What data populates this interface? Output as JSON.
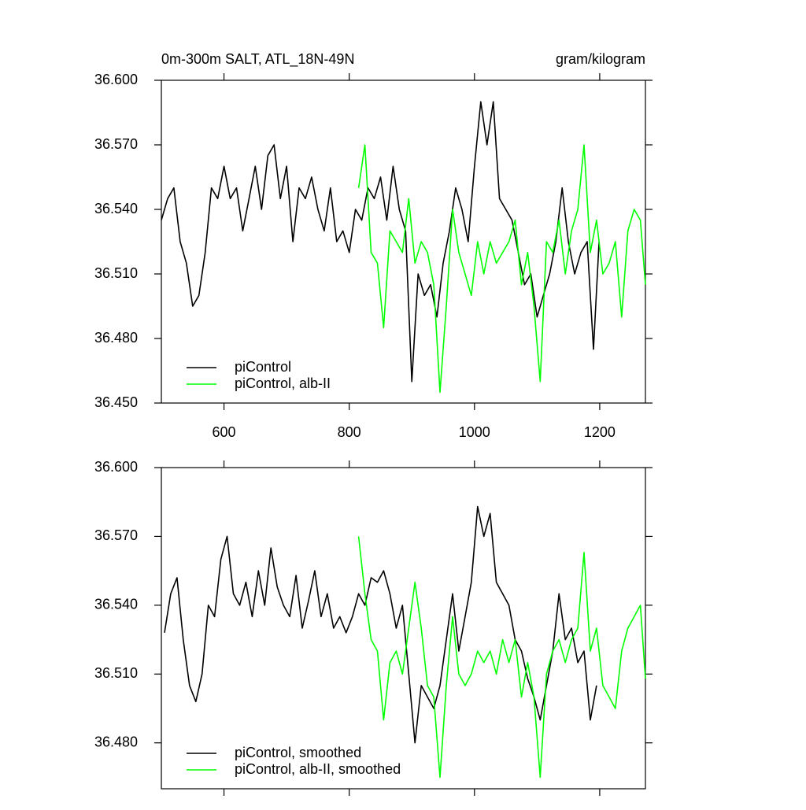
{
  "chart_data": [
    {
      "type": "line",
      "title": "0m-300m SALT, ATL_18N-49N",
      "units": "gram/kilogram",
      "xlim": [
        500,
        1273
      ],
      "ylim": [
        36.45,
        36.6
      ],
      "xticks": [
        600,
        800,
        1000,
        1200
      ],
      "yticks": [
        {
          "value": 36.45,
          "label": "36.450"
        },
        {
          "value": 36.48,
          "label": "36.480"
        },
        {
          "value": 36.51,
          "label": "36.510"
        },
        {
          "value": 36.54,
          "label": "36.540"
        },
        {
          "value": 36.57,
          "label": "36.570"
        },
        {
          "value": 36.6,
          "label": "36.600"
        }
      ],
      "legend": "lower left",
      "series": [
        {
          "name": "piControl",
          "color": "#000000",
          "x": [
            500,
            510,
            520,
            530,
            540,
            550,
            560,
            570,
            580,
            590,
            600,
            610,
            620,
            630,
            640,
            650,
            660,
            670,
            680,
            690,
            700,
            710,
            720,
            730,
            740,
            750,
            760,
            770,
            780,
            790,
            800,
            810,
            820,
            830,
            840,
            850,
            860,
            870,
            880,
            890,
            900,
            910,
            920,
            930,
            940,
            950,
            960,
            970,
            980,
            990,
            1000,
            1010,
            1020,
            1030,
            1040,
            1050,
            1060,
            1070,
            1080,
            1090,
            1100,
            1110,
            1120,
            1130,
            1140,
            1150,
            1160,
            1170,
            1180,
            1190,
            1199
          ],
          "values": [
            36.535,
            36.545,
            36.55,
            36.525,
            36.515,
            36.495,
            36.5,
            36.52,
            36.55,
            36.545,
            36.56,
            36.545,
            36.55,
            36.53,
            36.545,
            36.56,
            36.54,
            36.565,
            36.57,
            36.545,
            36.56,
            36.525,
            36.55,
            36.545,
            36.555,
            36.54,
            36.53,
            36.55,
            36.525,
            36.53,
            36.52,
            36.54,
            36.535,
            36.55,
            36.545,
            36.555,
            36.535,
            36.56,
            36.54,
            36.53,
            36.46,
            36.51,
            36.5,
            36.505,
            36.49,
            36.515,
            36.53,
            36.55,
            36.54,
            36.525,
            36.56,
            36.59,
            36.57,
            36.59,
            36.545,
            36.54,
            36.535,
            36.52,
            36.505,
            36.51,
            36.49,
            36.5,
            36.51,
            36.525,
            36.55,
            36.525,
            36.51,
            36.52,
            36.525,
            36.475,
            36.525
          ]
        },
        {
          "name": "piControl, alb-II",
          "color": "#00ff00",
          "x": [
            815,
            825,
            835,
            845,
            855,
            865,
            875,
            885,
            895,
            905,
            915,
            925,
            935,
            945,
            955,
            965,
            975,
            985,
            995,
            1005,
            1015,
            1025,
            1035,
            1045,
            1055,
            1065,
            1075,
            1085,
            1095,
            1105,
            1115,
            1125,
            1135,
            1145,
            1155,
            1165,
            1175,
            1185,
            1195,
            1205,
            1215,
            1225,
            1235,
            1245,
            1255,
            1265,
            1273
          ],
          "values": [
            36.55,
            36.57,
            36.52,
            36.515,
            36.485,
            36.53,
            36.525,
            36.52,
            36.545,
            36.515,
            36.525,
            36.52,
            36.505,
            36.455,
            36.495,
            36.54,
            36.52,
            36.51,
            36.5,
            36.525,
            36.51,
            36.525,
            36.515,
            36.52,
            36.525,
            36.535,
            36.505,
            36.52,
            36.495,
            36.46,
            36.525,
            36.52,
            36.535,
            36.51,
            36.53,
            36.54,
            36.57,
            36.52,
            36.535,
            36.51,
            36.515,
            36.525,
            36.49,
            36.53,
            36.54,
            36.535,
            36.505
          ]
        }
      ]
    },
    {
      "type": "line",
      "xlim": [
        500,
        1273
      ],
      "ylim": [
        36.46,
        36.6
      ],
      "yticks": [
        {
          "value": 36.48,
          "label": "36.480"
        },
        {
          "value": 36.51,
          "label": "36.510"
        },
        {
          "value": 36.54,
          "label": "36.540"
        },
        {
          "value": 36.57,
          "label": "36.570"
        },
        {
          "value": 36.6,
          "label": "36.600"
        }
      ],
      "legend": "lower left",
      "series": [
        {
          "name": "piControl, smoothed",
          "color": "#000000",
          "x": [
            505,
            515,
            525,
            535,
            545,
            555,
            565,
            575,
            585,
            595,
            605,
            615,
            625,
            635,
            645,
            655,
            665,
            675,
            685,
            695,
            705,
            715,
            725,
            735,
            745,
            755,
            765,
            775,
            785,
            795,
            805,
            815,
            825,
            835,
            845,
            855,
            865,
            875,
            885,
            895,
            905,
            915,
            925,
            935,
            945,
            955,
            965,
            975,
            985,
            995,
            1005,
            1015,
            1025,
            1035,
            1045,
            1055,
            1065,
            1075,
            1085,
            1095,
            1105,
            1115,
            1125,
            1135,
            1145,
            1155,
            1165,
            1175,
            1185,
            1195
          ],
          "values": [
            36.528,
            36.545,
            36.552,
            36.525,
            36.505,
            36.498,
            36.51,
            36.54,
            36.535,
            36.56,
            36.57,
            36.545,
            36.54,
            36.55,
            36.535,
            36.555,
            36.54,
            36.565,
            36.548,
            36.54,
            36.535,
            36.553,
            36.53,
            36.542,
            36.555,
            36.535,
            36.545,
            36.53,
            36.535,
            36.528,
            36.535,
            36.545,
            36.54,
            36.552,
            36.55,
            36.555,
            36.545,
            36.53,
            36.54,
            36.51,
            36.48,
            36.505,
            36.5,
            36.495,
            36.505,
            36.525,
            36.545,
            36.52,
            36.535,
            36.55,
            36.583,
            36.57,
            36.58,
            36.55,
            36.545,
            36.54,
            36.525,
            36.52,
            36.508,
            36.5,
            36.49,
            36.505,
            36.52,
            36.545,
            36.525,
            36.53,
            36.515,
            36.52,
            36.49,
            36.505
          ]
        },
        {
          "name": "piControl, alb-II, smoothed",
          "color": "#00ff00",
          "x": [
            815,
            825,
            835,
            845,
            855,
            865,
            875,
            885,
            895,
            905,
            915,
            925,
            935,
            945,
            955,
            965,
            975,
            985,
            995,
            1005,
            1015,
            1025,
            1035,
            1045,
            1055,
            1065,
            1075,
            1085,
            1095,
            1105,
            1115,
            1125,
            1135,
            1145,
            1155,
            1165,
            1175,
            1185,
            1195,
            1205,
            1215,
            1225,
            1235,
            1245,
            1255,
            1265,
            1273
          ],
          "values": [
            36.57,
            36.545,
            36.525,
            36.52,
            36.49,
            36.515,
            36.52,
            36.51,
            36.53,
            36.55,
            36.53,
            36.505,
            36.5,
            36.465,
            36.505,
            36.535,
            36.51,
            36.505,
            36.51,
            36.52,
            36.515,
            36.52,
            36.51,
            36.525,
            36.515,
            36.525,
            36.5,
            36.515,
            36.5,
            36.465,
            36.51,
            36.52,
            36.525,
            36.515,
            36.525,
            36.53,
            36.563,
            36.52,
            36.53,
            36.505,
            36.5,
            36.495,
            36.52,
            36.53,
            36.535,
            36.54,
            36.508
          ]
        }
      ]
    }
  ]
}
